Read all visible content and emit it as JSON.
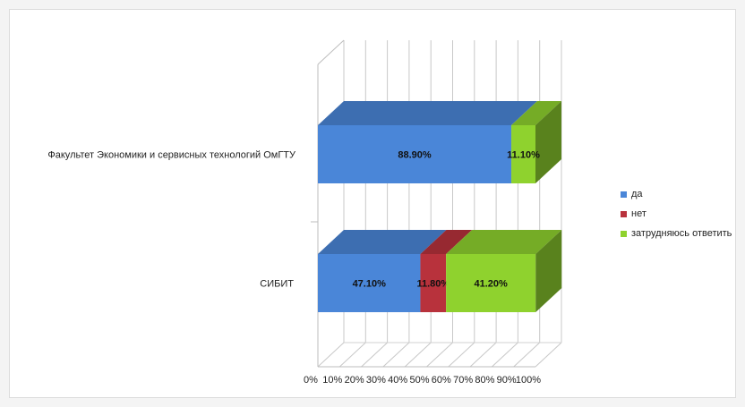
{
  "chart_data": {
    "type": "bar",
    "orientation": "horizontal",
    "stacked": "100%",
    "style": "3d",
    "categories": [
      "Факультет Экономики и сервисных технологий ОмГТУ",
      "СИБИТ"
    ],
    "series": [
      {
        "name": "да",
        "color": "#4a86d8",
        "values": [
          88.9,
          47.1
        ],
        "labels": [
          "88.90%",
          "47.10%"
        ]
      },
      {
        "name": "нет",
        "color": "#b8323c",
        "values": [
          0,
          11.8
        ],
        "labels": [
          "",
          "11.80%"
        ]
      },
      {
        "name": "затрудняюсь ответить",
        "color": "#8fd22e",
        "values": [
          11.1,
          41.2
        ],
        "labels": [
          "11.10%",
          "41.20%"
        ]
      }
    ],
    "x_ticks": [
      "0%",
      "10%",
      "20%",
      "30%",
      "40%",
      "50%",
      "60%",
      "70%",
      "80%",
      "90%",
      "100%"
    ],
    "xlim": [
      0,
      100
    ],
    "grid": true,
    "legend_position": "right"
  }
}
